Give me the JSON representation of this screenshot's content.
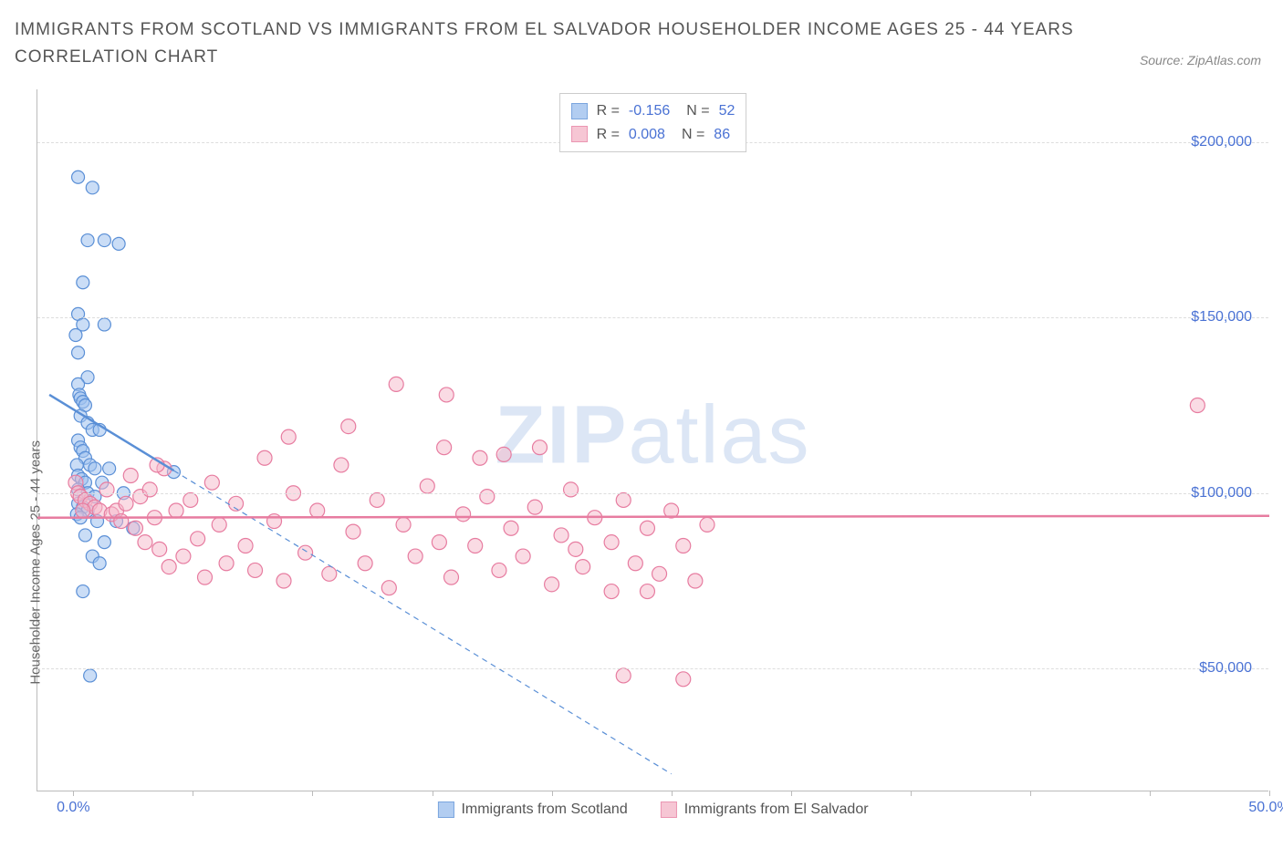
{
  "title": "IMMIGRANTS FROM SCOTLAND VS IMMIGRANTS FROM EL SALVADOR HOUSEHOLDER INCOME AGES 25 - 44 YEARS CORRELATION CHART",
  "source": "Source: ZipAtlas.com",
  "watermark_bold": "ZIP",
  "watermark_light": "atlas",
  "chart": {
    "type": "scatter",
    "ylabel": "Householder Income Ages 25 - 44 years",
    "xlim": [
      -1.5,
      50.0
    ],
    "ylim": [
      15000,
      215000
    ],
    "x_ticks": [
      0,
      5,
      10,
      15,
      20,
      25,
      30,
      35,
      40,
      45,
      50
    ],
    "x_tick_labels": {
      "0": "0.0%",
      "50": "50.0%"
    },
    "y_gridlines": [
      50000,
      100000,
      150000,
      200000
    ],
    "y_tick_labels": [
      "$50,000",
      "$100,000",
      "$150,000",
      "$200,000"
    ],
    "background_color": "#ffffff",
    "grid_color": "#dddddd",
    "series": [
      {
        "name": "Immigrants from Scotland",
        "color_fill": "#9fc1ee",
        "color_stroke": "#5a8fd6",
        "fill_opacity": 0.55,
        "marker_radius": 7,
        "R": "-0.156",
        "N": "52",
        "trend": {
          "x1": -1.0,
          "y1": 128000,
          "x2": 25.0,
          "y2": 20000,
          "solid_until_x": 4.2,
          "stroke_width": 2
        },
        "points": [
          [
            0.2,
            190000
          ],
          [
            0.8,
            187000
          ],
          [
            0.6,
            172000
          ],
          [
            1.3,
            172000
          ],
          [
            1.9,
            171000
          ],
          [
            0.4,
            160000
          ],
          [
            0.2,
            151000
          ],
          [
            0.4,
            148000
          ],
          [
            1.3,
            148000
          ],
          [
            0.1,
            145000
          ],
          [
            0.2,
            140000
          ],
          [
            0.6,
            133000
          ],
          [
            0.2,
            131000
          ],
          [
            0.25,
            128000
          ],
          [
            0.3,
            127000
          ],
          [
            0.4,
            126000
          ],
          [
            0.5,
            125000
          ],
          [
            0.3,
            122000
          ],
          [
            0.6,
            120000
          ],
          [
            0.8,
            118000
          ],
          [
            1.1,
            118000
          ],
          [
            0.2,
            115000
          ],
          [
            0.3,
            113000
          ],
          [
            0.4,
            112000
          ],
          [
            0.5,
            110000
          ],
          [
            0.15,
            108000
          ],
          [
            0.7,
            108000
          ],
          [
            0.9,
            107000
          ],
          [
            1.5,
            107000
          ],
          [
            0.2,
            105000
          ],
          [
            0.35,
            104000
          ],
          [
            0.5,
            103000
          ],
          [
            1.2,
            103000
          ],
          [
            0.2,
            101000
          ],
          [
            0.6,
            100000
          ],
          [
            0.9,
            99000
          ],
          [
            2.1,
            100000
          ],
          [
            0.2,
            97000
          ],
          [
            0.4,
            96000
          ],
          [
            0.6,
            95000
          ],
          [
            0.15,
            94000
          ],
          [
            0.3,
            93000
          ],
          [
            1.0,
            92000
          ],
          [
            1.8,
            92000
          ],
          [
            4.2,
            106000
          ],
          [
            0.5,
            88000
          ],
          [
            1.3,
            86000
          ],
          [
            0.8,
            82000
          ],
          [
            1.1,
            80000
          ],
          [
            2.5,
            90000
          ],
          [
            0.4,
            72000
          ],
          [
            0.7,
            48000
          ]
        ]
      },
      {
        "name": "Immigrants from El Salvador",
        "color_fill": "#f5b8ca",
        "color_stroke": "#e77ca0",
        "fill_opacity": 0.5,
        "marker_radius": 8,
        "R": "0.008",
        "N": "86",
        "trend": {
          "x1": -1.5,
          "y1": 93000,
          "x2": 50.0,
          "y2": 93500,
          "solid_until_x": 50.0,
          "stroke_width": 2
        },
        "points": [
          [
            0.1,
            103000
          ],
          [
            0.2,
            100000
          ],
          [
            0.3,
            99000
          ],
          [
            0.5,
            98000
          ],
          [
            0.7,
            97000
          ],
          [
            0.9,
            96000
          ],
          [
            1.1,
            95000
          ],
          [
            1.4,
            101000
          ],
          [
            1.6,
            94000
          ],
          [
            1.8,
            95000
          ],
          [
            2.0,
            92000
          ],
          [
            2.2,
            97000
          ],
          [
            2.4,
            105000
          ],
          [
            2.6,
            90000
          ],
          [
            2.8,
            99000
          ],
          [
            3.0,
            86000
          ],
          [
            3.2,
            101000
          ],
          [
            3.4,
            93000
          ],
          [
            3.6,
            84000
          ],
          [
            3.8,
            107000
          ],
          [
            4.0,
            79000
          ],
          [
            4.3,
            95000
          ],
          [
            4.6,
            82000
          ],
          [
            4.9,
            98000
          ],
          [
            5.2,
            87000
          ],
          [
            5.5,
            76000
          ],
          [
            5.8,
            103000
          ],
          [
            6.1,
            91000
          ],
          [
            6.4,
            80000
          ],
          [
            6.8,
            97000
          ],
          [
            7.2,
            85000
          ],
          [
            7.6,
            78000
          ],
          [
            8.0,
            110000
          ],
          [
            8.4,
            92000
          ],
          [
            8.8,
            75000
          ],
          [
            9.2,
            100000
          ],
          [
            9.7,
            83000
          ],
          [
            10.2,
            95000
          ],
          [
            10.7,
            77000
          ],
          [
            11.2,
            108000
          ],
          [
            11.5,
            119000
          ],
          [
            11.7,
            89000
          ],
          [
            12.2,
            80000
          ],
          [
            12.7,
            98000
          ],
          [
            13.2,
            73000
          ],
          [
            13.5,
            131000
          ],
          [
            13.8,
            91000
          ],
          [
            14.3,
            82000
          ],
          [
            14.8,
            102000
          ],
          [
            15.3,
            86000
          ],
          [
            15.5,
            113000
          ],
          [
            15.6,
            128000
          ],
          [
            15.8,
            76000
          ],
          [
            16.3,
            94000
          ],
          [
            16.8,
            85000
          ],
          [
            17.0,
            110000
          ],
          [
            17.3,
            99000
          ],
          [
            17.8,
            78000
          ],
          [
            18.0,
            111000
          ],
          [
            18.3,
            90000
          ],
          [
            18.8,
            82000
          ],
          [
            19.3,
            96000
          ],
          [
            19.5,
            113000
          ],
          [
            20.0,
            74000
          ],
          [
            20.4,
            88000
          ],
          [
            20.8,
            101000
          ],
          [
            21.0,
            84000
          ],
          [
            21.3,
            79000
          ],
          [
            21.8,
            93000
          ],
          [
            22.5,
            86000
          ],
          [
            22.5,
            72000
          ],
          [
            23.0,
            98000
          ],
          [
            23.5,
            80000
          ],
          [
            24.0,
            90000
          ],
          [
            24.0,
            72000
          ],
          [
            24.5,
            77000
          ],
          [
            25.0,
            95000
          ],
          [
            25.5,
            85000
          ],
          [
            26.0,
            75000
          ],
          [
            26.5,
            91000
          ],
          [
            23.0,
            48000
          ],
          [
            25.5,
            47000
          ],
          [
            3.5,
            108000
          ],
          [
            9.0,
            116000
          ],
          [
            47.0,
            125000
          ],
          [
            0.4,
            95000
          ]
        ]
      }
    ]
  },
  "legend_bottom": [
    "Immigrants from Scotland",
    "Immigrants from El Salvador"
  ]
}
